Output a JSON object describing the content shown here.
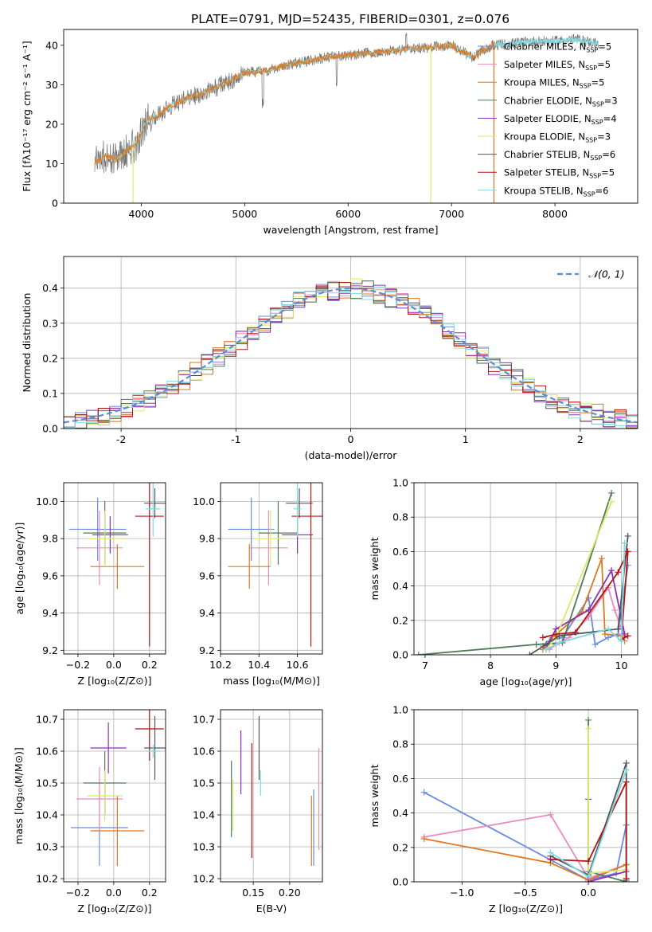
{
  "figure_title": "PLATE=0791, MJD=52435, FIBERID=0301, z=0.076",
  "colors": {
    "chabrier_miles": "#6a8cdb",
    "salpeter_miles": "#e88ac3",
    "kroupa_miles": "#e0761f",
    "chabrier_elodie": "#4f7a56",
    "salpeter_elodie": "#8c2fb8",
    "kroupa_elodie": "#dbe86b",
    "chabrier_stelib": "#555555",
    "salpeter_stelib": "#b01515",
    "kroupa_stelib": "#7fd8e0",
    "normal": "#5b8dd6"
  },
  "chart_data": [
    {
      "id": "spectrum",
      "type": "line",
      "xlabel": "wavelength [Angstrom, rest frame]",
      "ylabel": "Flux [fλ10⁻¹⁷ erg cm⁻² s⁻¹ A⁻¹]",
      "xlim": [
        3250,
        8800
      ],
      "ylim": [
        0,
        44
      ],
      "xticks": [
        4000,
        5000,
        6000,
        7000,
        8000
      ],
      "yticks": [
        0,
        10,
        20,
        30,
        40
      ],
      "continuum": {
        "x": [
          3550,
          3650,
          3750,
          3850,
          3950,
          4050,
          4150,
          4300,
          4500,
          4700,
          4850,
          5000,
          5200,
          5400,
          5600,
          5800,
          6000,
          6200,
          6400,
          6600,
          6800,
          7000,
          7200,
          7400,
          7600,
          7800,
          8000,
          8200,
          8400
        ],
        "y": [
          10,
          12,
          11,
          13,
          15,
          21,
          22,
          25,
          27,
          29,
          31,
          33,
          33.5,
          35,
          36,
          37,
          37.5,
          38,
          38.5,
          39,
          39.5,
          40,
          37,
          40,
          40.5,
          41,
          41,
          41.5,
          40.5
        ]
      },
      "legend": [
        {
          "label": "Chabrier MILES, N",
          "sub": "SSP",
          "value": "=5",
          "color_key": "chabrier_miles"
        },
        {
          "label": "Salpeter MILES, N",
          "sub": "SSP",
          "value": "=5",
          "color_key": "salpeter_miles"
        },
        {
          "label": "Kroupa MILES, N",
          "sub": "SSP",
          "value": "=5",
          "color_key": "kroupa_miles"
        },
        {
          "label": "Chabrier ELODIE, N",
          "sub": "SSP",
          "value": "=3",
          "color_key": "chabrier_elodie"
        },
        {
          "label": "Salpeter ELODIE, N",
          "sub": "SSP",
          "value": "=4",
          "color_key": "salpeter_elodie"
        },
        {
          "label": "Kroupa ELODIE, N",
          "sub": "SSP",
          "value": "=3",
          "color_key": "kroupa_elodie"
        },
        {
          "label": "Chabrier STELIB, N",
          "sub": "SSP",
          "value": "=6",
          "color_key": "chabrier_stelib"
        },
        {
          "label": "Salpeter STELIB, N",
          "sub": "SSP",
          "value": "=5",
          "color_key": "salpeter_stelib"
        },
        {
          "label": "Kroupa STELIB, N",
          "sub": "SSP",
          "value": "=6",
          "color_key": "kroupa_stelib"
        }
      ]
    },
    {
      "id": "residuals",
      "type": "histogram",
      "xlabel": "(data-model)/error",
      "ylabel": "Normed distribution",
      "xlim": [
        -2.5,
        2.5
      ],
      "ylim": [
        0,
        0.49
      ],
      "xticks": [
        -2,
        -1,
        0,
        1,
        2
      ],
      "yticks": [
        0.0,
        0.1,
        0.2,
        0.3,
        0.4
      ],
      "grid": true,
      "legend_label": "𝒩(0, 1)",
      "legend_position": "top-right",
      "bin_width": 0.1,
      "bin_start": -2.5
    },
    {
      "id": "z_age",
      "type": "errorbar",
      "xlabel": "Z [log₁₀(Z/Z⊙)]",
      "ylabel": "age  [log₁₀(age/yr)]",
      "xlim": [
        -0.28,
        0.29
      ],
      "ylim": [
        9.18,
        10.1
      ],
      "xticks": [
        -0.2,
        0.0,
        0.2
      ],
      "xticklabels": [
        "−0.2",
        "0.0",
        "0.2"
      ],
      "yticks": [
        9.2,
        9.4,
        9.6,
        9.8,
        10.0
      ],
      "yticklabels": [
        "9.2",
        "9.4",
        "9.6",
        "9.8",
        "10.0"
      ],
      "points": [
        {
          "c": "chabrier_miles",
          "x": -0.09,
          "xe": 0.16,
          "y": 9.85,
          "ye": 0.17
        },
        {
          "c": "salpeter_miles",
          "x": -0.08,
          "xe": 0.13,
          "y": 9.75,
          "ye": 0.2
        },
        {
          "c": "kroupa_miles",
          "x": 0.02,
          "xe": 0.15,
          "y": 9.65,
          "ye": 0.12
        },
        {
          "c": "chabrier_elodie",
          "x": -0.05,
          "xe": 0.12,
          "y": 9.83,
          "ye": 0.17
        },
        {
          "c": "salpeter_elodie",
          "x": -0.02,
          "xe": 0.1,
          "y": 9.82,
          "ye": 0.1
        },
        {
          "c": "kroupa_elodie",
          "x": -0.05,
          "xe": 0.1,
          "y": 9.8,
          "ye": 0.15
        },
        {
          "c": "chabrier_stelib",
          "x": 0.23,
          "xe": 0.06,
          "y": 9.99,
          "ye": 0.08
        },
        {
          "c": "salpeter_stelib",
          "x": 0.2,
          "xe": 0.08,
          "y": 9.92,
          "ye": 0.7
        },
        {
          "c": "kroupa_stelib",
          "x": 0.22,
          "xe": 0.04,
          "y": 9.96,
          "ye": 0.15
        }
      ]
    },
    {
      "id": "mass_age",
      "type": "errorbar",
      "xlabel": "mass [log₁₀(M/M⊙)]",
      "ylabel": "",
      "xlim": [
        10.2,
        10.73
      ],
      "ylim": [
        9.18,
        10.1
      ],
      "xticks": [
        10.2,
        10.4,
        10.6
      ],
      "xticklabels": [
        "10.2",
        "10.4",
        "10.6"
      ],
      "yticks": [
        9.2,
        9.4,
        9.6,
        9.8,
        10.0
      ],
      "yticklabels": [
        "9.2",
        "9.4",
        "9.6",
        "9.8",
        "10.0"
      ],
      "points": [
        {
          "c": "chabrier_miles",
          "x": 10.36,
          "xe": 0.12,
          "y": 9.85,
          "ye": 0.17
        },
        {
          "c": "salpeter_miles",
          "x": 10.45,
          "xe": 0.1,
          "y": 9.75,
          "ye": 0.2
        },
        {
          "c": "kroupa_miles",
          "x": 10.35,
          "xe": 0.11,
          "y": 9.65,
          "ye": 0.12
        },
        {
          "c": "chabrier_elodie",
          "x": 10.5,
          "xe": 0.1,
          "y": 9.83,
          "ye": 0.17
        },
        {
          "c": "salpeter_elodie",
          "x": 10.6,
          "xe": 0.08,
          "y": 9.82,
          "ye": 0.1
        },
        {
          "c": "kroupa_elodie",
          "x": 10.46,
          "xe": 0.08,
          "y": 9.8,
          "ye": 0.15
        },
        {
          "c": "chabrier_stelib",
          "x": 10.61,
          "xe": 0.07,
          "y": 9.99,
          "ye": 0.08
        },
        {
          "c": "salpeter_stelib",
          "x": 10.67,
          "xe": 0.1,
          "y": 9.92,
          "ye": 0.7
        },
        {
          "c": "kroupa_stelib",
          "x": 10.6,
          "xe": 0.02,
          "y": 9.96,
          "ye": 0.15
        }
      ]
    },
    {
      "id": "age_weight",
      "type": "line",
      "xlabel": "age  [log₁₀(age/yr)]",
      "ylabel": "mass weight",
      "xlim": [
        6.83,
        10.25
      ],
      "ylim": [
        0,
        1
      ],
      "xticks": [
        7,
        8,
        9,
        10
      ],
      "xticklabels": [
        "7",
        "8",
        "9",
        "10"
      ],
      "yticks": [
        0,
        0.2,
        0.4,
        0.6,
        0.8,
        1.0
      ],
      "yticklabels": [
        "0.0",
        "0.2",
        "0.4",
        "0.6",
        "0.8",
        "1.0"
      ],
      "series": [
        {
          "c": "chabrier_miles",
          "x": [
            8.8,
            8.9,
            9.1,
            9.5,
            9.6,
            9.8,
            9.95,
            10.1
          ],
          "y": [
            0.05,
            0.08,
            0.1,
            0.33,
            0.06,
            0.1,
            0.12,
            0.52
          ]
        },
        {
          "c": "salpeter_miles",
          "x": [
            8.9,
            9.0,
            9.2,
            9.5,
            9.8,
            9.9,
            10.05
          ],
          "y": [
            0.03,
            0.06,
            0.1,
            0.22,
            0.39,
            0.26,
            0.1
          ]
        },
        {
          "c": "kroupa_miles",
          "x": [
            8.8,
            8.95,
            9.4,
            9.7,
            9.75,
            10.0,
            10.05
          ],
          "y": [
            0.03,
            0.1,
            0.25,
            0.56,
            0.12,
            0.11,
            0.08
          ]
        },
        {
          "c": "chabrier_elodie",
          "x": [
            6.9,
            8.7,
            9.1,
            9.85
          ],
          "y": [
            0.0,
            0.06,
            0.07,
            0.94
          ]
        },
        {
          "c": "salpeter_elodie",
          "x": [
            8.85,
            9.0,
            9.5,
            9.85,
            10.05
          ],
          "y": [
            0.04,
            0.15,
            0.26,
            0.49,
            0.12
          ]
        },
        {
          "c": "kroupa_elodie",
          "x": [
            8.85,
            9.0,
            9.85
          ],
          "y": [
            0.03,
            0.1,
            0.89
          ]
        },
        {
          "c": "chabrier_stelib",
          "x": [
            8.6,
            8.85,
            9.05,
            9.95,
            10.1
          ],
          "y": [
            0.0,
            0.06,
            0.11,
            0.15,
            0.69
          ]
        },
        {
          "c": "salpeter_stelib",
          "x": [
            8.8,
            9.0,
            9.3,
            9.95,
            10.1,
            10.0,
            10.1
          ],
          "y": [
            0.1,
            0.12,
            0.13,
            0.48,
            0.6,
            0.09,
            0.11
          ]
        },
        {
          "c": "kroupa_stelib",
          "x": [
            8.85,
            9.05,
            9.8,
            10.0,
            10.05
          ],
          "y": [
            0.03,
            0.07,
            0.15,
            0.08,
            0.65
          ]
        }
      ]
    },
    {
      "id": "z_mass",
      "type": "errorbar",
      "xlabel": "Z [log₁₀(Z/Z⊙)]",
      "ylabel": "mass [log₁₀(M/M⊙)]",
      "xlim": [
        -0.28,
        0.29
      ],
      "ylim": [
        10.19,
        10.73
      ],
      "xticks": [
        -0.2,
        0.0,
        0.2
      ],
      "xticklabels": [
        "−0.2",
        "0.0",
        "0.2"
      ],
      "yticks": [
        10.2,
        10.3,
        10.4,
        10.5,
        10.6,
        10.7
      ],
      "yticklabels": [
        "10.2",
        "10.3",
        "10.4",
        "10.5",
        "10.6",
        "10.7"
      ],
      "points": [
        {
          "c": "chabrier_miles",
          "x": -0.08,
          "xe": 0.16,
          "y": 10.36,
          "ye": 0.12
        },
        {
          "c": "salpeter_miles",
          "x": -0.08,
          "xe": 0.13,
          "y": 10.45,
          "ye": 0.1
        },
        {
          "c": "kroupa_miles",
          "x": 0.02,
          "xe": 0.15,
          "y": 10.35,
          "ye": 0.11
        },
        {
          "c": "chabrier_elodie",
          "x": -0.05,
          "xe": 0.12,
          "y": 10.5,
          "ye": 0.1
        },
        {
          "c": "salpeter_elodie",
          "x": -0.03,
          "xe": 0.1,
          "y": 10.61,
          "ye": 0.08
        },
        {
          "c": "kroupa_elodie",
          "x": -0.05,
          "xe": 0.1,
          "y": 10.46,
          "ye": 0.08
        },
        {
          "c": "chabrier_stelib",
          "x": 0.23,
          "xe": 0.06,
          "y": 10.61,
          "ye": 0.1
        },
        {
          "c": "salpeter_stelib",
          "x": 0.2,
          "xe": 0.08,
          "y": 10.67,
          "ye": 0.1
        },
        {
          "c": "kroupa_stelib",
          "x": 0.22,
          "xe": 0.04,
          "y": 10.6,
          "ye": 0.02
        }
      ]
    },
    {
      "id": "ebv_mass",
      "type": "errorbar",
      "xlabel": "E(B-V)",
      "ylabel": "",
      "xlim": [
        0.105,
        0.245
      ],
      "ylim": [
        10.19,
        10.73
      ],
      "xticks": [
        0.15,
        0.2
      ],
      "xticklabels": [
        "0.15",
        "0.20"
      ],
      "yticks": [
        10.2,
        10.3,
        10.4,
        10.5,
        10.6,
        10.7
      ],
      "yticklabels": [
        "10.2",
        "10.3",
        "10.4",
        "10.5",
        "10.6",
        "10.7"
      ],
      "points": [
        {
          "c": "chabrier_miles",
          "x": 0.233,
          "xe": 0,
          "y": 10.36,
          "ye": 0.12
        },
        {
          "c": "salpeter_miles",
          "x": 0.24,
          "xe": 0,
          "y": 10.45,
          "ye": 0.16
        },
        {
          "c": "kroupa_miles",
          "x": 0.23,
          "xe": 0,
          "y": 10.35,
          "ye": 0.11
        },
        {
          "c": "chabrier_elodie",
          "x": 0.12,
          "xe": 0,
          "y": 10.45,
          "ye": 0.12
        },
        {
          "c": "salpeter_elodie",
          "x": 0.133,
          "xe": 0,
          "y": 10.565,
          "ye": 0.1
        },
        {
          "c": "kroupa_elodie",
          "x": 0.122,
          "xe": 0,
          "y": 10.43,
          "ye": 0.08
        },
        {
          "c": "chabrier_stelib",
          "x": 0.158,
          "xe": 0,
          "y": 10.61,
          "ye": 0.1
        },
        {
          "c": "salpeter_stelib",
          "x": 0.148,
          "xe": 0,
          "y": 10.445,
          "ye": 0.18
        },
        {
          "c": "kroupa_stelib",
          "x": 0.16,
          "xe": 0,
          "y": 10.5,
          "ye": 0.04
        }
      ]
    },
    {
      "id": "z_weight",
      "type": "line",
      "xlabel": "Z [log₁₀(Z/Z⊙)]",
      "ylabel": "mass weight",
      "xlim": [
        -1.38,
        0.39
      ],
      "ylim": [
        0,
        1
      ],
      "xticks": [
        -1.0,
        -0.5,
        0.0
      ],
      "xticklabels": [
        "−1.0",
        "−0.5",
        "0.0"
      ],
      "yticks": [
        0,
        0.2,
        0.4,
        0.6,
        0.8,
        1.0
      ],
      "yticklabels": [
        "0.0",
        "0.2",
        "0.4",
        "0.6",
        "0.8",
        "1.0"
      ],
      "series": [
        {
          "c": "chabrier_miles",
          "x": [
            -1.3,
            0.0,
            0.22,
            0.3
          ],
          "y": [
            0.52,
            0.01,
            0.05,
            0.33
          ]
        },
        {
          "c": "salpeter_miles",
          "x": [
            -1.3,
            -0.3,
            0.0,
            0.3
          ],
          "y": [
            0.26,
            0.39,
            0.02,
            0.1
          ]
        },
        {
          "c": "kroupa_miles",
          "x": [
            -1.3,
            -0.3,
            0.0,
            0.3
          ],
          "y": [
            0.25,
            0.11,
            0.01,
            0.1
          ]
        },
        {
          "c": "chabrier_elodie",
          "x": [
            0.0,
            0.0,
            0.0,
            0.3
          ],
          "y": [
            0.94,
            0.0,
            0.06,
            0.0
          ]
        },
        {
          "c": "salpeter_elodie",
          "x": [
            0.0,
            0.0,
            0.3
          ],
          "y": [
            0.48,
            0.0,
            0.06
          ]
        },
        {
          "c": "kroupa_elodie",
          "x": [
            0.0,
            0.0,
            0.3
          ],
          "y": [
            0.89,
            0.05,
            0.07
          ]
        },
        {
          "c": "chabrier_stelib",
          "x": [
            -0.3,
            0.0,
            0.3,
            0.3
          ],
          "y": [
            0.15,
            0.04,
            0.69,
            0.01
          ]
        },
        {
          "c": "salpeter_stelib",
          "x": [
            -0.3,
            0.0,
            0.3,
            0.3
          ],
          "y": [
            0.13,
            0.12,
            0.58,
            0.02
          ]
        },
        {
          "c": "kroupa_stelib",
          "x": [
            -0.3,
            0.0,
            0.3
          ],
          "y": [
            0.17,
            0.03,
            0.65
          ]
        }
      ]
    }
  ]
}
